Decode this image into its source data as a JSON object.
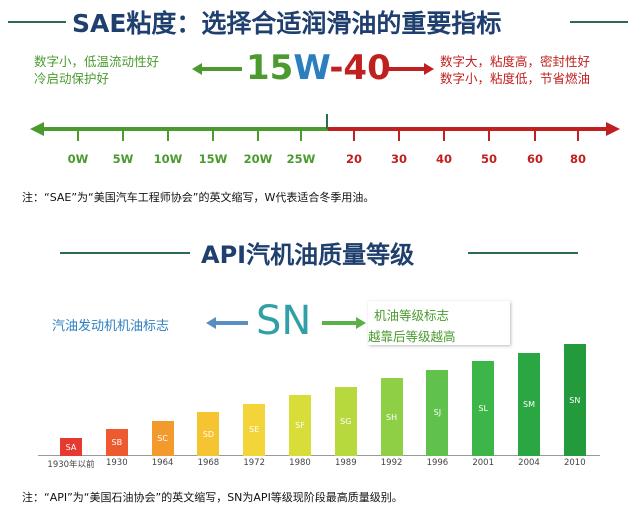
{
  "sae": {
    "title": "SAE粘度：选择合适润滑油的重要指标",
    "left_text": [
      "数字小，低温流动性好",
      "冷启动保护好"
    ],
    "grade": {
      "part1": "15",
      "part2": "W",
      "part3": "-40"
    },
    "right_text": [
      "数字大，粘度高，密封性好",
      "数字小，粘度低，节省燃油"
    ],
    "winter_ticks": [
      "0W",
      "5W",
      "10W",
      "15W",
      "20W",
      "25W"
    ],
    "summer_ticks": [
      "20",
      "30",
      "40",
      "50",
      "60",
      "80"
    ],
    "note": "注：“SAE”为“美国汽车工程师协会”的英文缩写，W代表适合冬季用油。"
  },
  "api": {
    "title": "API汽机油质量等级",
    "left_label": "汽油发动机机油标志",
    "grade": "SN",
    "right_text": [
      "机油等级标志",
      "越靠后等级越高"
    ],
    "note": "注：“API”为“美国石油协会”的英文缩写，SN为API等级现阶段最高质量级别。"
  },
  "chart_data": {
    "type": "bar",
    "categories": [
      "1930年以前",
      "1930",
      "1964",
      "1968",
      "1972",
      "1980",
      "1989",
      "1992",
      "1996",
      "2001",
      "2004",
      "2010"
    ],
    "labels": [
      "SA",
      "SB",
      "SC",
      "SD",
      "SE",
      "SF",
      "SG",
      "SH",
      "SJ",
      "SL",
      "SM",
      "SN"
    ],
    "values": [
      1,
      2,
      3,
      4,
      5,
      6,
      7,
      8,
      9,
      10,
      11,
      12
    ],
    "colors": [
      "#e53a2f",
      "#ee5a30",
      "#f39a2c",
      "#f6c431",
      "#f3d53a",
      "#d9dd3a",
      "#b8d93e",
      "#8fcf45",
      "#60c24c",
      "#3db649",
      "#2aa642",
      "#239a3b"
    ]
  }
}
